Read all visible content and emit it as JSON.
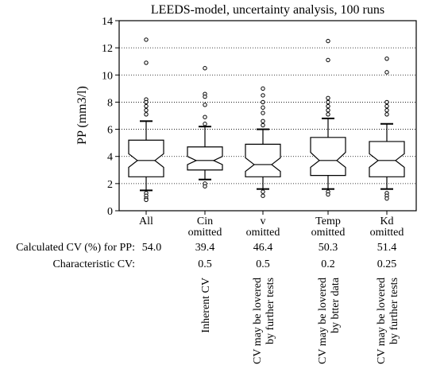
{
  "chart_data": {
    "type": "boxplot",
    "title": "LEEDS-model, uncertainty analysis, 100 runs",
    "ylabel": "PP (mm3/l)",
    "ylim": [
      0,
      14
    ],
    "yticks": [
      "0",
      "2",
      "4",
      "6",
      "8",
      "10",
      "12",
      "14"
    ],
    "grid": "horizontal dotted",
    "categories": [
      {
        "line1": "All",
        "line2": ""
      },
      {
        "line1": "Cin",
        "line2": "omitted"
      },
      {
        "line1": "v",
        "line2": "omitted"
      },
      {
        "line1": "Temp",
        "line2": "omitted"
      },
      {
        "line1": "Kd",
        "line2": "omitted"
      }
    ],
    "boxes": [
      {
        "q1": 2.5,
        "median": 3.7,
        "q3": 5.2,
        "notch_lo": 3.2,
        "notch_hi": 4.2,
        "whisker_lo": 1.5,
        "whisker_hi": 6.6,
        "outliers": [
          12.6,
          10.9,
          8.2,
          8.0,
          7.7,
          7.4,
          7.1,
          1.3,
          1.1,
          0.9,
          0.8
        ]
      },
      {
        "q1": 3.0,
        "median": 3.7,
        "q3": 4.7,
        "notch_lo": 3.4,
        "notch_hi": 4.0,
        "whisker_lo": 2.3,
        "whisker_hi": 6.2,
        "outliers": [
          10.5,
          8.6,
          8.4,
          7.8,
          6.9,
          6.4,
          2.0,
          1.8
        ]
      },
      {
        "q1": 2.5,
        "median": 3.4,
        "q3": 4.9,
        "notch_lo": 2.9,
        "notch_hi": 3.9,
        "whisker_lo": 1.6,
        "whisker_hi": 6.0,
        "outliers": [
          9.0,
          8.5,
          8.0,
          7.6,
          7.2,
          6.6,
          6.3,
          1.4,
          1.1
        ]
      },
      {
        "q1": 2.6,
        "median": 3.7,
        "q3": 5.4,
        "notch_lo": 3.2,
        "notch_hi": 4.3,
        "whisker_lo": 1.6,
        "whisker_hi": 6.8,
        "outliers": [
          12.5,
          11.1,
          8.3,
          8.0,
          7.7,
          7.4,
          7.1,
          1.4,
          1.2
        ]
      },
      {
        "q1": 2.5,
        "median": 3.7,
        "q3": 5.1,
        "notch_lo": 3.2,
        "notch_hi": 4.2,
        "whisker_lo": 1.6,
        "whisker_hi": 6.4,
        "outliers": [
          11.2,
          10.2,
          8.0,
          7.7,
          7.4,
          7.1,
          1.3,
          1.1,
          0.9
        ]
      }
    ],
    "table": {
      "row1_label": "Calculated CV (%) for PP:",
      "row1_values": [
        "54.0",
        "39.4",
        "46.4",
        "50.3",
        "51.4"
      ],
      "row2_label": "Characteristic CV:",
      "row2_values": [
        "",
        "0.5",
        "0.5",
        "0.2",
        "0.25"
      ]
    },
    "notes": [
      {
        "line1": "",
        "line2": ""
      },
      {
        "line1": "Inherent CV",
        "line2": ""
      },
      {
        "line1": "CV may be lovered",
        "line2": "by further tests"
      },
      {
        "line1": "CV may be lovered",
        "line2": "by btter data"
      },
      {
        "line1": "CV may be lovered",
        "line2": "by further tests"
      }
    ]
  }
}
